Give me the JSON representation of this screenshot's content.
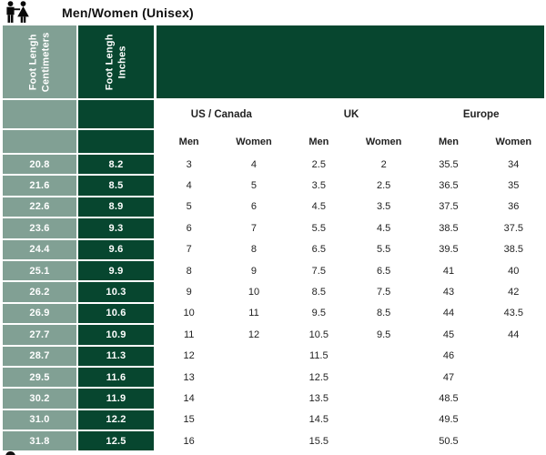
{
  "title": "Men/Women (Unisex)",
  "icon": "man-woman-couple-icon",
  "colors": {
    "sage_green": "#81A094",
    "dark_green": "#07462F",
    "row_text": "#1f1f1f"
  },
  "table": {
    "col_headers": {
      "centimeters": "Foot Lengh\nCentimeters",
      "inches": "Foot Lengh\nInches"
    },
    "region_headers": [
      "US / Canada",
      "UK",
      "Europe"
    ],
    "gender_headers": [
      "Men",
      "Women",
      "Men",
      "Women",
      "Men",
      "Women"
    ]
  },
  "chart_data": {
    "type": "table",
    "title": "Men/Women (Unisex)",
    "columns": [
      "Foot Lengh Centimeters",
      "Foot Lengh Inches",
      "US / Canada Men",
      "US / Canada Women",
      "UK Men",
      "UK Women",
      "Europe Men",
      "Europe Women"
    ],
    "rows": [
      [
        "20.8",
        "8.2",
        "3",
        "4",
        "2.5",
        "2",
        "35.5",
        "34"
      ],
      [
        "21.6",
        "8.5",
        "4",
        "5",
        "3.5",
        "2.5",
        "36.5",
        "35"
      ],
      [
        "22.6",
        "8.9",
        "5",
        "6",
        "4.5",
        "3.5",
        "37.5",
        "36"
      ],
      [
        "23.6",
        "9.3",
        "6",
        "7",
        "5.5",
        "4.5",
        "38.5",
        "37.5"
      ],
      [
        "24.4",
        "9.6",
        "7",
        "8",
        "6.5",
        "5.5",
        "39.5",
        "38.5"
      ],
      [
        "25.1",
        "9.9",
        "8",
        "9",
        "7.5",
        "6.5",
        "41",
        "40"
      ],
      [
        "26.2",
        "10.3",
        "9",
        "10",
        "8.5",
        "7.5",
        "43",
        "42"
      ],
      [
        "26.9",
        "10.6",
        "10",
        "11",
        "9.5",
        "8.5",
        "44",
        "43.5"
      ],
      [
        "27.7",
        "10.9",
        "11",
        "12",
        "10.5",
        "9.5",
        "45",
        "44"
      ],
      [
        "28.7",
        "11.3",
        "12",
        "",
        "11.5",
        "",
        "46",
        ""
      ],
      [
        "29.5",
        "11.6",
        "13",
        "",
        "12.5",
        "",
        "47",
        ""
      ],
      [
        "30.2",
        "11.9",
        "14",
        "",
        "13.5",
        "",
        "48.5",
        ""
      ],
      [
        "31.0",
        "12.2",
        "15",
        "",
        "14.5",
        "",
        "49.5",
        ""
      ],
      [
        "31.8",
        "12.5",
        "16",
        "",
        "15.5",
        "",
        "50.5",
        ""
      ]
    ]
  }
}
